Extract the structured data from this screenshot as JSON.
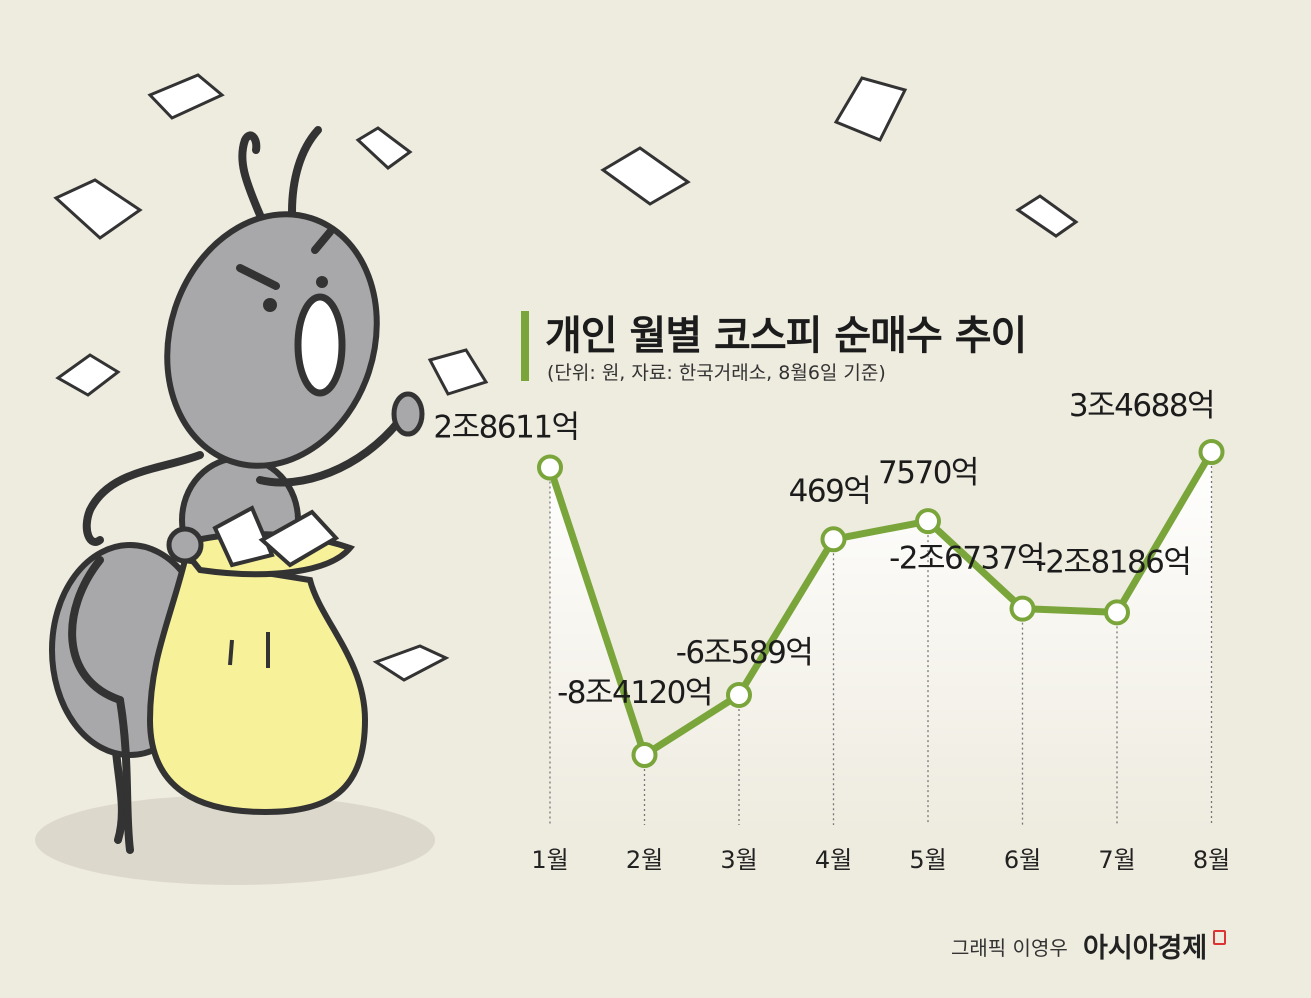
{
  "title": "개인 월별 코스피 순매수 추이",
  "subtitle": "(단위: 원, 자료: 한국거래소, 8월6일 기준)",
  "credit": "그래픽 이영우",
  "brand": "아시아경제",
  "colors": {
    "background": "#eeebdf",
    "line": "#7aa53b",
    "marker_fill": "#ffffff",
    "text": "#1c1c1c",
    "brand_accent": "#dd3333"
  },
  "chart_data": {
    "type": "line",
    "categories": [
      "1월",
      "2월",
      "3월",
      "4월",
      "5월",
      "6월",
      "7월",
      "8월"
    ],
    "values": [
      28611,
      -84120,
      -60589,
      469,
      7570,
      -26737,
      -28186,
      34688
    ],
    "value_unit": "억 원",
    "data_labels": [
      "2조8611억",
      "-8조4120억",
      "-6조589억",
      "469억",
      "7570억",
      "-2조6737억",
      "-2조8186억",
      "3조4688억"
    ],
    "ylim": [
      -84120,
      34688
    ],
    "grid": false,
    "y_axis_visible": false,
    "marker": "open-circle"
  }
}
